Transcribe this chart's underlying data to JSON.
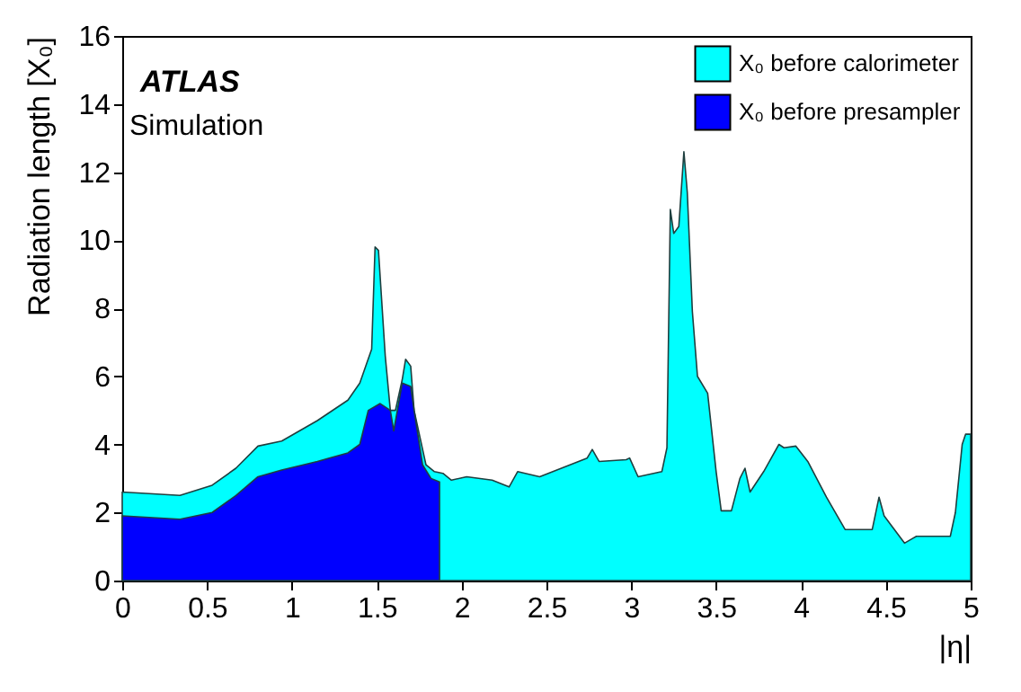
{
  "chart_data": {
    "type": "area",
    "xlabel": "|η|",
    "ylabel": "Radiation length [X₀]",
    "annotations": [
      "ATLAS",
      "Simulation"
    ],
    "xlim": [
      0,
      5
    ],
    "xticks": [
      0,
      0.5,
      1,
      1.5,
      2,
      2.5,
      3,
      3.5,
      4,
      4.5,
      5
    ],
    "ylim": [
      0,
      16
    ],
    "yticks": [
      0,
      2,
      4,
      6,
      8,
      10,
      12,
      14,
      16
    ],
    "grid": false,
    "legend": "top right",
    "series": [
      {
        "name": "X₀ before calorimeter",
        "color": "#00ffff",
        "x": [
          0,
          0.34,
          0.53,
          0.67,
          0.8,
          0.94,
          1.15,
          1.33,
          1.4,
          1.47,
          1.49,
          1.51,
          1.55,
          1.58,
          1.61,
          1.65,
          1.67,
          1.7,
          1.72,
          1.79,
          1.84,
          1.89,
          1.94,
          2.03,
          2.18,
          2.28,
          2.33,
          2.46,
          2.74,
          2.77,
          2.81,
          2.97,
          2.99,
          3.04,
          3.18,
          3.21,
          3.23,
          3.25,
          3.28,
          3.31,
          3.33,
          3.36,
          3.39,
          3.45,
          3.5,
          3.53,
          3.59,
          3.64,
          3.67,
          3.7,
          3.78,
          3.87,
          3.9,
          3.97,
          4.04,
          4.15,
          4.26,
          4.42,
          4.46,
          4.49,
          4.61,
          4.68,
          4.88,
          4.91,
          4.95,
          4.97,
          5
        ],
        "values": [
          2.6,
          2.5,
          2.8,
          3.3,
          3.95,
          4.1,
          4.7,
          5.3,
          5.8,
          6.8,
          9.8,
          9.7,
          6.6,
          5.0,
          5.0,
          5.9,
          6.5,
          6.3,
          5.0,
          3.4,
          3.2,
          3.15,
          2.95,
          3.05,
          2.95,
          2.75,
          3.2,
          3.05,
          3.6,
          3.85,
          3.5,
          3.55,
          3.6,
          3.05,
          3.2,
          3.9,
          10.9,
          10.2,
          10.4,
          12.6,
          11.4,
          7.9,
          6.0,
          5.5,
          3.2,
          2.05,
          2.05,
          3.0,
          3.3,
          2.6,
          3.2,
          4.0,
          3.9,
          3.95,
          3.5,
          2.45,
          1.5,
          1.5,
          2.45,
          1.9,
          1.1,
          1.3,
          1.3,
          2.0,
          4.0,
          4.3,
          4.3
        ]
      },
      {
        "name": "X₀ before presampler",
        "color": "#0000ff",
        "x": [
          0,
          0.34,
          0.53,
          0.67,
          0.8,
          0.94,
          1.15,
          1.33,
          1.4,
          1.45,
          1.52,
          1.58,
          1.6,
          1.65,
          1.7,
          1.72,
          1.77,
          1.82,
          1.87
        ],
        "values": [
          1.9,
          1.8,
          2.0,
          2.5,
          3.05,
          3.25,
          3.5,
          3.75,
          4.0,
          5.0,
          5.2,
          5.0,
          4.4,
          5.8,
          5.7,
          5.0,
          3.4,
          3.0,
          2.9
        ]
      }
    ]
  }
}
